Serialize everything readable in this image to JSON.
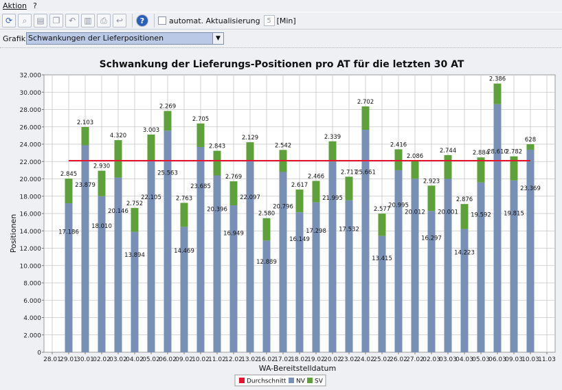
{
  "menu": {
    "items": [
      "Aktion",
      "?"
    ]
  },
  "toolbar": {
    "auto_update_label": "automat. Aktualisierung",
    "interval_value": "5",
    "interval_unit": "[Min]"
  },
  "grafik": {
    "label": "Grafik",
    "selected": "Schwankungen der Lieferpositionen"
  },
  "colors": {
    "average": "#e8122e",
    "nv": "#7890b6",
    "sv": "#5ea13b",
    "plot_bg": "#ffffff",
    "grid": "#c4c4c4"
  },
  "chart_data": {
    "type": "bar",
    "stacked": true,
    "title": "Schwankung der Lieferungs-Positionen pro AT für die letzten 30 AT",
    "xlabel": "WA-Bereitstelldatum",
    "ylabel": "Positionen",
    "ylim": [
      0,
      32000
    ],
    "yticks": [
      "0",
      "2.000",
      "4.000",
      "6.000",
      "8.000",
      "10.000",
      "12.000",
      "14.000",
      "16.000",
      "18.000",
      "20.000",
      "22.000",
      "24.000",
      "26.000",
      "28.000",
      "30.000",
      "32.000"
    ],
    "grid": true,
    "legend_position": "bottom",
    "categories": [
      "28.01",
      "29.01",
      "30.01",
      "02.02",
      "03.02",
      "04.02",
      "05.02",
      "06.02",
      "09.02",
      "10.02",
      "11.02",
      "12.02",
      "13.02",
      "16.02",
      "17.02",
      "18.02",
      "19.02",
      "20.02",
      "23.02",
      "24.02",
      "25.02",
      "26.02",
      "27.02",
      "02.03",
      "03.03",
      "04.03",
      "05.03",
      "06.03",
      "09.03",
      "10.03",
      "11.03"
    ],
    "series": [
      {
        "name": "NV",
        "values": [
          null,
          17186,
          23879,
          18010,
          20146,
          13894,
          22105,
          25563,
          14469,
          23685,
          20396,
          16949,
          22097,
          12889,
          20796,
          16149,
          17298,
          21995,
          17532,
          25661,
          13415,
          20995,
          20012,
          16297,
          20001,
          14223,
          19592,
          28610,
          19815,
          23369,
          null
        ],
        "labels": [
          "",
          "17.186",
          "23.879",
          "18.010",
          "20.146",
          "13.894",
          "22.105",
          "25.563",
          "14.469",
          "23.685",
          "20.396",
          "16.949",
          "22.097",
          "12.889",
          "20.796",
          "16.149",
          "17.298",
          "21.995",
          "17.532",
          "25.661",
          "13.415",
          "20.995",
          "20.012",
          "16.297",
          "20.001",
          "14.223",
          "19.592",
          "28.610",
          "19.815",
          "23.369",
          ""
        ]
      },
      {
        "name": "SV",
        "values": [
          null,
          2845,
          2103,
          2930,
          4320,
          2752,
          3003,
          2269,
          2763,
          2705,
          2843,
          2769,
          2129,
          2580,
          2542,
          2617,
          2466,
          2339,
          2717,
          2702,
          2577,
          2416,
          2086,
          2923,
          2744,
          2876,
          2884,
          2386,
          2782,
          628,
          null
        ],
        "labels": [
          "",
          "2.845",
          "2.103",
          "2.930",
          "4.320",
          "2.752",
          "3.003",
          "2.269",
          "2.763",
          "2.705",
          "2.843",
          "2.769",
          "2.129",
          "2.580",
          "2.542",
          "2.617",
          "2.466",
          "2.339",
          "2.717",
          "2.702",
          "2.577",
          "2.416",
          "2.086",
          "2.923",
          "2.744",
          "2.876",
          "2.884",
          "2.386",
          "2.782",
          "628",
          ""
        ]
      },
      {
        "name": "Durchschnitt",
        "type": "line",
        "value": 22100,
        "x_range": [
          "29.01",
          "10.03"
        ]
      }
    ],
    "legend": [
      "Durchschnitt",
      "NV",
      "SV"
    ]
  }
}
